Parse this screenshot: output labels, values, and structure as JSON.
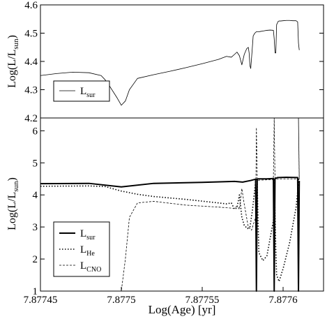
{
  "chart_data": [
    {
      "type": "line",
      "title": "",
      "xlabel": "",
      "ylabel_main": "Log(L/L",
      "ylabel_sub": "sun",
      "ylabel_close": ")",
      "xlim": [
        7.87745,
        7.877625
      ],
      "ylim": [
        4.2,
        4.6
      ],
      "yticks": [
        4.2,
        4.3,
        4.4,
        4.5,
        4.6
      ],
      "ytick_labels": [
        "4.2",
        "4.3",
        "4.4",
        "4.5",
        "4.6"
      ],
      "grid": false,
      "legend_position": "bottom-left",
      "legend": [
        {
          "main": "L",
          "sub": "sur",
          "style": "solid-thin"
        }
      ],
      "series": [
        {
          "name": "Lsur",
          "style": "solid-thin",
          "x": [
            7.87745,
            7.87746,
            7.87747,
            7.87748,
            7.8774875,
            7.87749,
            7.8774925,
            7.8774975,
            7.8775,
            7.8775025,
            7.877505,
            7.87751,
            7.87752,
            7.87753,
            7.87754,
            7.87755,
            7.87756,
            7.877565,
            7.877568,
            7.87757,
            7.8775715,
            7.877573,
            7.8775745,
            7.877576,
            7.8775775,
            7.8775785,
            7.877579,
            7.8775795,
            7.87758,
            7.877581,
            7.8775815,
            7.8775825,
            7.8775835,
            7.877584,
            7.8775845,
            7.877585,
            7.877586,
            7.877588,
            7.87759,
            7.877592,
            7.877594,
            7.8775945,
            7.877595,
            7.8775955,
            7.877596,
            7.877597,
            7.8775975,
            7.8775985,
            7.8776,
            7.877602,
            7.877604,
            7.877606,
            7.877608,
            7.877609,
            7.8776095,
            7.87761
          ],
          "y": [
            4.35,
            4.357,
            4.362,
            4.36,
            4.35,
            4.335,
            4.315,
            4.27,
            4.245,
            4.26,
            4.3,
            4.34,
            4.353,
            4.365,
            4.378,
            4.392,
            4.407,
            4.418,
            4.415,
            4.425,
            4.433,
            4.42,
            4.388,
            4.425,
            4.445,
            4.45,
            4.43,
            4.385,
            4.375,
            4.45,
            4.49,
            4.5,
            4.505,
            4.505,
            4.505,
            4.505,
            4.506,
            4.508,
            4.51,
            4.511,
            4.51,
            4.48,
            4.43,
            4.43,
            4.53,
            4.542,
            4.543,
            4.543,
            4.544,
            4.545,
            4.545,
            4.544,
            4.544,
            4.54,
            4.465,
            4.44
          ]
        }
      ]
    },
    {
      "type": "line",
      "title": "",
      "xlabel": "Log(Age) [yr]",
      "ylabel_main": "Log(L/L",
      "ylabel_sub": "sun",
      "ylabel_close": ")",
      "xlim": [
        7.87745,
        7.877625
      ],
      "ylim": [
        1,
        6.4
      ],
      "yticks": [
        1,
        2,
        3,
        4,
        5,
        6
      ],
      "ytick_labels": [
        "1",
        "2",
        "3",
        "4",
        "5",
        "6"
      ],
      "xticks": [
        7.87745,
        7.8775,
        7.87755,
        7.8776
      ],
      "xtick_labels": [
        "7.87745",
        "7.8775",
        "7.87755",
        "7.8776"
      ],
      "grid": false,
      "legend_position": "bottom-left",
      "legend": [
        {
          "main": "L",
          "sub": "sur",
          "style": "solid-thick"
        },
        {
          "main": "L",
          "sub": "He",
          "style": "dotted"
        },
        {
          "main": "L",
          "sub": "CNO",
          "style": "dashed"
        }
      ],
      "series": [
        {
          "name": "Lsur",
          "style": "solid-thick",
          "x": [
            7.87745,
            7.87748,
            7.8775,
            7.87752,
            7.87755,
            7.87757,
            7.877575,
            7.87758,
            7.877583,
            7.8775835,
            7.877584,
            7.8775845,
            7.877585,
            7.87759,
            7.877594,
            7.8775945,
            7.877595,
            7.8775955,
            7.877596,
            7.8775965,
            7.877597,
            7.877602,
            7.877609,
            7.8776095,
            7.87761
          ],
          "y": [
            4.35,
            4.36,
            4.25,
            4.36,
            4.39,
            4.42,
            4.4,
            4.45,
            4.49,
            1.0,
            4.49,
            4.5,
            4.5,
            4.5,
            4.51,
            1.0,
            4.51,
            4.52,
            4.53,
            4.54,
            4.54,
            4.55,
            4.54,
            1.0,
            4.44
          ]
        },
        {
          "name": "LHe",
          "style": "dotted",
          "x": [
            7.87745,
            7.87748,
            7.87749,
            7.8775,
            7.87751,
            7.87752,
            7.87754,
            7.87756,
            7.877565,
            7.877568,
            7.87757,
            7.8775715,
            7.877573,
            7.8775745,
            7.877576,
            7.877578,
            7.8775795,
            7.877581,
            7.877583,
            7.8775835,
            7.877584,
            7.8775845,
            7.877585,
            7.8775875,
            7.87759,
            7.877594,
            7.8775945,
            7.877595,
            7.8775955,
            7.877596,
            7.8775975,
            7.8776,
            7.877604,
            7.877608,
            7.877609,
            7.8776095,
            7.87761
          ],
          "y": [
            4.27,
            4.28,
            4.26,
            4.12,
            4.02,
            3.95,
            3.86,
            3.75,
            3.72,
            3.75,
            3.55,
            3.6,
            4.0,
            3.3,
            3.05,
            2.95,
            3.0,
            3.5,
            4.4,
            4.49,
            4.4,
            3.2,
            2.2,
            1.95,
            2.1,
            3.2,
            4.5,
            3.5,
            2.3,
            1.5,
            1.3,
            1.7,
            2.5,
            3.6,
            4.1,
            4.48,
            4.2
          ]
        },
        {
          "name": "LCNO",
          "style": "dashed",
          "x": [
            7.87749,
            7.8775,
            7.8775025,
            7.877505,
            7.87751,
            7.87752,
            7.87754,
            7.87756,
            7.87757,
            7.8775715,
            7.877573,
            7.8775745,
            7.877576,
            7.8775785,
            7.8775805,
            7.877583,
            7.8775835,
            7.877584,
            7.8775845,
            7.877585,
            7.877586,
            7.87759,
            7.877594,
            7.8775945,
            7.877595,
            7.8775955,
            7.877596,
            7.8775975,
            7.87761,
            7.8776095,
            7.87761
          ],
          "y": [
            1.0,
            1.0,
            2.0,
            3.3,
            3.75,
            3.8,
            3.68,
            3.62,
            3.58,
            3.65,
            3.55,
            4.2,
            3.7,
            3.0,
            2.9,
            3.3,
            6.1,
            4.5,
            4.45,
            4.46,
            4.46,
            4.47,
            4.47,
            6.4,
            4.5,
            4.5,
            4.5,
            4.5,
            4.5,
            6.4,
            4.4
          ]
        }
      ]
    }
  ]
}
